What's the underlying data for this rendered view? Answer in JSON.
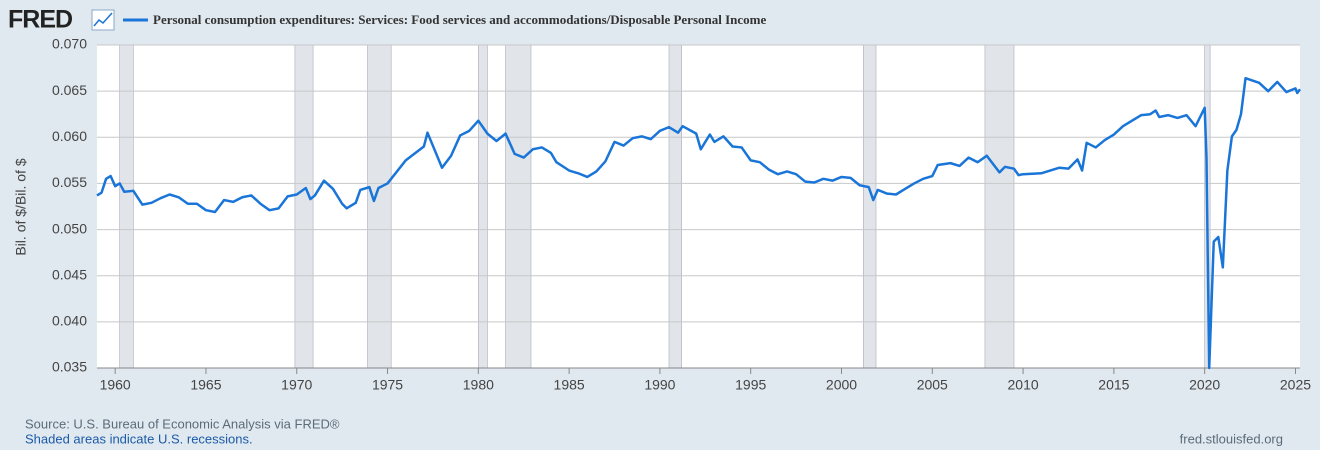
{
  "logo": "FRED",
  "chart_data": {
    "type": "line",
    "title": "Personal consumption expenditures: Services: Food services and accommodations/Disposable Personal Income",
    "y_label": "Bil. of $/Bil. of $",
    "source": "Source: U.S. Bureau of Economic Analysis via FRED®",
    "recession_note": "Shaded areas indicate U.S. recessions.",
    "site": "fred.stlouisfed.org",
    "xlim": [
      1959,
      2025.25
    ],
    "xticks": [
      1960,
      1965,
      1970,
      1975,
      1980,
      1985,
      1990,
      1995,
      2000,
      2005,
      2010,
      2015,
      2020,
      2025
    ],
    "ylim": [
      0.035,
      0.07
    ],
    "yticks": [
      {
        "value": 0.035,
        "label": "0.035"
      },
      {
        "value": 0.04,
        "label": "0.040"
      },
      {
        "value": 0.045,
        "label": "0.045"
      },
      {
        "value": 0.05,
        "label": "0.050"
      },
      {
        "value": 0.055,
        "label": "0.055"
      },
      {
        "value": 0.06,
        "label": "0.060"
      },
      {
        "value": 0.065,
        "label": "0.065"
      },
      {
        "value": 0.07,
        "label": "0.070"
      }
    ],
    "grid": true,
    "recessions": [
      [
        1960.25,
        1961.0
      ],
      [
        1969.9,
        1970.9
      ],
      [
        1973.9,
        1975.2
      ],
      [
        1980.0,
        1980.5
      ],
      [
        1981.5,
        1982.9
      ],
      [
        1990.5,
        1991.2
      ],
      [
        2001.2,
        2001.9
      ],
      [
        2007.9,
        2009.5
      ],
      [
        2020.0,
        2020.3
      ]
    ],
    "series": [
      {
        "name": "Personal consumption expenditures: Services: Food services and accommodations/Disposable Personal Income",
        "color": "#1a75d8",
        "x": [
          1959,
          1959.25,
          1959.5,
          1959.75,
          1960,
          1960.25,
          1960.5,
          1961,
          1961.5,
          1962,
          1962.5,
          1963,
          1963.5,
          1964,
          1964.5,
          1965,
          1965.5,
          1966,
          1966.5,
          1967,
          1967.5,
          1968,
          1968.5,
          1969,
          1969.5,
          1970,
          1970.5,
          1970.75,
          1971,
          1971.5,
          1972,
          1972.5,
          1972.75,
          1973.25,
          1973.5,
          1974,
          1974.25,
          1974.5,
          1975,
          1976,
          1977,
          1977.2,
          1978,
          1978.5,
          1979,
          1979.5,
          1980,
          1980.5,
          1981,
          1981.5,
          1982,
          1982.5,
          1983,
          1983.5,
          1984,
          1984.3,
          1985,
          1985.5,
          1986,
          1986.5,
          1987,
          1987.5,
          1988,
          1988.5,
          1989,
          1989.5,
          1990,
          1990.5,
          1991,
          1991.25,
          1992,
          1992.25,
          1992.75,
          1993,
          1993.5,
          1994,
          1994.5,
          1995,
          1995.5,
          1996,
          1996.5,
          1997,
          1997.5,
          1998,
          1998.5,
          1999,
          1999.5,
          2000,
          2000.5,
          2001,
          2001.5,
          2001.75,
          2002,
          2002.5,
          2003,
          2003.5,
          2004,
          2004.5,
          2005,
          2005.3,
          2006,
          2006.5,
          2007,
          2007.5,
          2008,
          2008.7,
          2009,
          2009.5,
          2009.75,
          2010,
          2011,
          2012,
          2012.5,
          2013,
          2013.25,
          2013.5,
          2014,
          2014.5,
          2015,
          2015.5,
          2016,
          2016.5,
          2017,
          2017.3,
          2017.5,
          2018,
          2018.5,
          2019,
          2019.5,
          2020,
          2020.1,
          2020.25,
          2020.5,
          2020.75,
          2021,
          2021.25,
          2021.5,
          2021.75,
          2022,
          2022.25,
          2023,
          2023.5,
          2024,
          2024.5,
          2025,
          2025.1,
          2025.25
        ],
        "values": [
          0.0537,
          0.054,
          0.0555,
          0.0558,
          0.0547,
          0.055,
          0.0541,
          0.0542,
          0.0527,
          0.0529,
          0.0534,
          0.0538,
          0.0535,
          0.0528,
          0.0528,
          0.0521,
          0.0519,
          0.0532,
          0.053,
          0.0535,
          0.0537,
          0.0528,
          0.0521,
          0.0523,
          0.0536,
          0.0538,
          0.0545,
          0.0533,
          0.0537,
          0.0553,
          0.0544,
          0.0528,
          0.0523,
          0.0529,
          0.0543,
          0.0546,
          0.0531,
          0.0545,
          0.055,
          0.0575,
          0.059,
          0.0605,
          0.0567,
          0.058,
          0.0602,
          0.0607,
          0.0618,
          0.0604,
          0.0596,
          0.0604,
          0.0582,
          0.0578,
          0.0587,
          0.0589,
          0.0583,
          0.0573,
          0.0564,
          0.0561,
          0.0557,
          0.0563,
          0.0574,
          0.0595,
          0.0591,
          0.0599,
          0.0601,
          0.0598,
          0.0607,
          0.0611,
          0.0605,
          0.0612,
          0.0604,
          0.0587,
          0.0603,
          0.0595,
          0.0601,
          0.059,
          0.0589,
          0.0575,
          0.0573,
          0.0565,
          0.056,
          0.0563,
          0.056,
          0.0552,
          0.0551,
          0.0555,
          0.0553,
          0.0557,
          0.0556,
          0.0548,
          0.0546,
          0.0532,
          0.0543,
          0.0539,
          0.0538,
          0.0544,
          0.055,
          0.0555,
          0.0558,
          0.057,
          0.0572,
          0.0569,
          0.0578,
          0.0573,
          0.058,
          0.0562,
          0.0568,
          0.0566,
          0.0559,
          0.056,
          0.0561,
          0.0567,
          0.0566,
          0.0576,
          0.0564,
          0.0594,
          0.0589,
          0.0597,
          0.0603,
          0.0612,
          0.0618,
          0.0624,
          0.0625,
          0.0629,
          0.0622,
          0.0624,
          0.0621,
          0.0624,
          0.0612,
          0.0632,
          0.0578,
          0.035,
          0.0487,
          0.0492,
          0.0459,
          0.0564,
          0.0601,
          0.0608,
          0.0625,
          0.0664,
          0.0659,
          0.065,
          0.066,
          0.0649,
          0.0653,
          0.0648,
          0.0652
        ]
      }
    ]
  }
}
